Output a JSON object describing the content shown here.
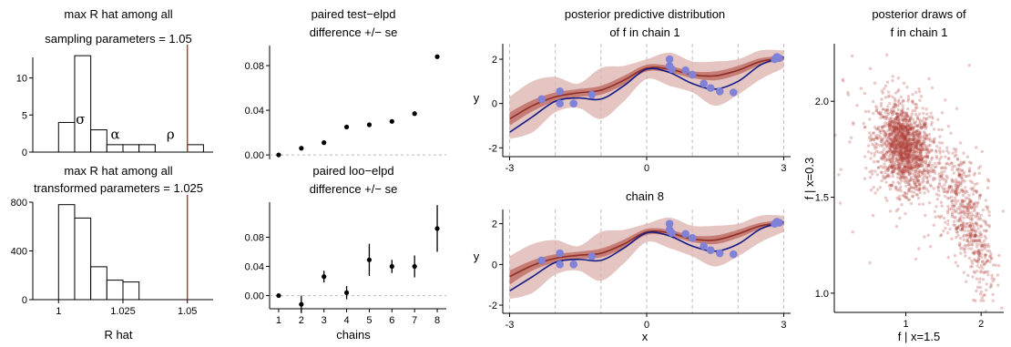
{
  "colors": {
    "rhat_line": "#a0302c",
    "bar_fill": "#ffffff",
    "bar_stroke": "#000000",
    "point": "#000000",
    "band_outer": "#dcb1ae",
    "band_mid": "#c07068",
    "band_inner": "#f2bfa8",
    "median": "#8f2e26",
    "truth": "#141b85",
    "obs": "#7f82d6",
    "draws": "#b0403a",
    "vline": "#bdbdbd"
  },
  "chart_data": [
    {
      "id": "rhat_sampling",
      "type": "bar",
      "title_line1": "max R hat among all",
      "title_line2": "sampling parameters = 1.05",
      "bins_left": [
        1.0,
        1.00625,
        1.0125,
        1.01875,
        1.025,
        1.03125,
        1.0375,
        1.04375,
        1.05,
        1.05625
      ],
      "bin_width": 0.00625,
      "counts": [
        4,
        13,
        3,
        1,
        1,
        1,
        0,
        0,
        1,
        0
      ],
      "ylim": [
        0,
        14
      ],
      "yticks": [
        "0",
        "5",
        "10"
      ],
      "ytick_values": [
        0,
        5,
        10
      ],
      "xlim": [
        0.99,
        1.06
      ],
      "vline": 1.05,
      "annotations": [
        {
          "text": "σ",
          "x": 1.0085,
          "y": 3.8
        },
        {
          "text": "α",
          "x": 1.022,
          "y": 1.8
        },
        {
          "text": "ρ",
          "x": 1.0435,
          "y": 1.8
        }
      ]
    },
    {
      "id": "rhat_transformed",
      "type": "bar",
      "title_line1": "max R hat among all",
      "title_line2": "transformed  parameters = 1.025",
      "bins_left": [
        1.0,
        1.00625,
        1.0125,
        1.01875,
        1.025,
        1.03125,
        1.0375,
        1.04375,
        1.05,
        1.05625
      ],
      "bin_width": 0.00625,
      "counts": [
        780,
        670,
        270,
        160,
        145,
        0,
        0,
        0,
        0,
        0
      ],
      "ylim": [
        0,
        830
      ],
      "yticks": [
        "0",
        "400",
        "800"
      ],
      "ytick_values": [
        0,
        400,
        800
      ],
      "xlim": [
        0.99,
        1.06
      ],
      "xticks": [
        "1",
        "1.025",
        "1.05"
      ],
      "xtick_values": [
        1,
        1.025,
        1.05
      ],
      "xlabel": "R hat",
      "vline": 1.05
    },
    {
      "id": "test_elpd",
      "type": "scatter",
      "title_line1": "paired test−elpd",
      "title_line2": "difference  +/− se",
      "x": [
        1,
        2,
        3,
        4,
        5,
        6,
        7,
        8
      ],
      "y": [
        0.0,
        0.006,
        0.011,
        0.025,
        0.027,
        0.03,
        0.037,
        0.088
      ],
      "se": [
        0.0,
        0.0015,
        0.0015,
        0.0015,
        0.0015,
        0.0015,
        0.0015,
        0.0018
      ],
      "ylim": [
        -0.004,
        0.098
      ],
      "yticks": [
        "0.00",
        "0.04",
        "0.08"
      ],
      "ytick_values": [
        0,
        0.04,
        0.08
      ],
      "hline": 0
    },
    {
      "id": "loo_elpd",
      "type": "scatter",
      "title_line1": "paired loo−elpd",
      "title_line2": "difference  +/− se",
      "x": [
        1,
        2,
        3,
        4,
        5,
        6,
        7,
        8
      ],
      "y": [
        0.0,
        -0.012,
        0.026,
        0.004,
        0.049,
        0.04,
        0.04,
        0.092
      ],
      "se": [
        0.0,
        0.012,
        0.008,
        0.009,
        0.022,
        0.009,
        0.015,
        0.032
      ],
      "ylim": [
        -0.018,
        0.128
      ],
      "yticks": [
        "0.00",
        "0.04",
        "0.08"
      ],
      "ytick_values": [
        0,
        0.04,
        0.08
      ],
      "xticks": [
        "1",
        "2",
        "3",
        "4",
        "5",
        "6",
        "7",
        "8"
      ],
      "xlabel": "chains",
      "hline": 0
    },
    {
      "id": "ppd_chain1",
      "type": "line",
      "title_line1": "posterior predictive distribution",
      "title_line2": "of f in chain 1",
      "ylabel": "y",
      "xlim": [
        -3.15,
        3.15
      ],
      "ylim": [
        -2.4,
        2.7
      ],
      "yticks": [
        "-2",
        "0",
        "2"
      ],
      "ytick_values": [
        -2,
        0,
        2
      ],
      "xticks": [
        "-3",
        "0",
        "3"
      ],
      "xtick_values": [
        -3,
        0,
        3
      ],
      "vlines": [
        -3,
        -2,
        -1,
        0,
        1,
        2,
        3
      ],
      "x": [
        -3.0,
        -2.5,
        -2.0,
        -1.5,
        -1.0,
        -0.5,
        0.0,
        0.5,
        1.0,
        1.5,
        2.0,
        2.5,
        3.0
      ],
      "truth": [
        -1.3,
        -0.6,
        0.1,
        0.25,
        0.2,
        0.8,
        1.55,
        1.4,
        0.9,
        0.65,
        1.0,
        1.75,
        2.1
      ],
      "median": [
        -0.7,
        -0.1,
        0.3,
        0.48,
        0.6,
        1.05,
        1.6,
        1.55,
        1.3,
        1.25,
        1.5,
        1.9,
        2.05
      ],
      "outer_lower": [
        -1.6,
        -1.3,
        -0.4,
        -0.2,
        -0.7,
        0.1,
        1.1,
        0.8,
        0.5,
        -0.1,
        0.4,
        1.1,
        1.6
      ],
      "outer_upper": [
        0.3,
        1.0,
        1.2,
        0.9,
        1.6,
        1.7,
        2.0,
        2.3,
        1.9,
        1.9,
        2.0,
        2.4,
        2.4
      ],
      "mid_lower": [
        -1.0,
        -0.35,
        0.1,
        0.3,
        0.4,
        0.85,
        1.45,
        1.4,
        1.15,
        1.05,
        1.3,
        1.75,
        1.95
      ],
      "mid_upper": [
        -0.4,
        0.15,
        0.5,
        0.65,
        0.8,
        1.25,
        1.75,
        1.7,
        1.45,
        1.45,
        1.7,
        2.05,
        2.15
      ],
      "obs_x": [
        -2.3,
        -1.9,
        -1.9,
        -1.6,
        -1.2,
        0.5,
        0.5,
        0.55,
        0.85,
        1.0,
        1.25,
        1.4,
        1.6,
        1.9,
        2.8,
        2.85,
        2.9
      ],
      "obs_y": [
        0.2,
        0.55,
        0.0,
        0.0,
        0.4,
        2.0,
        1.7,
        1.55,
        1.5,
        1.3,
        0.9,
        0.7,
        0.55,
        0.5,
        2.0,
        2.1,
        2.05
      ]
    },
    {
      "id": "ppd_chain8",
      "type": "line",
      "title_line1": "chain 8",
      "ylabel": "y",
      "xlabel": "x",
      "xlim": [
        -3.15,
        3.15
      ],
      "ylim": [
        -2.4,
        2.7
      ],
      "yticks": [
        "-2",
        "0",
        "2"
      ],
      "ytick_values": [
        -2,
        0,
        2
      ],
      "xticks": [
        "-3",
        "0",
        "3"
      ],
      "xtick_values": [
        -3,
        0,
        3
      ],
      "vlines": [
        -3,
        -2,
        -1,
        0,
        1,
        2,
        3
      ],
      "x": [
        -3.0,
        -2.5,
        -2.0,
        -1.5,
        -1.0,
        -0.5,
        0.0,
        0.5,
        1.0,
        1.5,
        2.0,
        2.5,
        3.0
      ],
      "truth": [
        -1.3,
        -0.6,
        0.1,
        0.25,
        0.2,
        0.8,
        1.55,
        1.4,
        0.9,
        0.65,
        1.0,
        1.75,
        2.1
      ],
      "median": [
        -0.6,
        -0.05,
        0.3,
        0.45,
        0.55,
        1.0,
        1.6,
        1.55,
        1.25,
        1.2,
        1.5,
        1.9,
        2.05
      ],
      "outer_lower": [
        -1.7,
        -1.4,
        -0.5,
        -0.3,
        -0.8,
        0.05,
        1.1,
        0.8,
        0.4,
        -0.1,
        0.4,
        1.1,
        1.6
      ],
      "outer_upper": [
        0.4,
        1.0,
        1.2,
        0.9,
        1.6,
        1.7,
        2.0,
        2.3,
        1.9,
        1.9,
        2.0,
        2.4,
        2.4
      ],
      "mid_lower": [
        -1.0,
        -0.3,
        0.1,
        0.28,
        0.35,
        0.8,
        1.45,
        1.4,
        1.1,
        1.0,
        1.3,
        1.75,
        1.95
      ],
      "mid_upper": [
        -0.3,
        0.2,
        0.5,
        0.62,
        0.78,
        1.22,
        1.75,
        1.7,
        1.42,
        1.42,
        1.7,
        2.05,
        2.15
      ],
      "obs_x": [
        -2.3,
        -1.9,
        -1.9,
        -1.6,
        -1.2,
        0.5,
        0.5,
        0.55,
        0.85,
        1.0,
        1.25,
        1.4,
        1.6,
        1.9,
        2.8,
        2.85,
        2.9
      ],
      "obs_y": [
        0.2,
        0.55,
        0.0,
        0.0,
        0.4,
        2.0,
        1.7,
        1.55,
        1.5,
        1.3,
        0.9,
        0.7,
        0.55,
        0.5,
        2.0,
        2.1,
        2.05
      ]
    },
    {
      "id": "posterior_draws",
      "type": "scatter",
      "title_line1": "posterior draws of",
      "title_line2": "f in chain 1",
      "xlabel": "f | x=1.5",
      "ylabel": "f | x=0.3",
      "xlim": [
        0.05,
        2.3
      ],
      "ylim": [
        0.9,
        2.3
      ],
      "xticks": [
        "1",
        "2"
      ],
      "xtick_values": [
        1,
        2
      ],
      "yticks": [
        "1.0",
        "1.5",
        "2.0"
      ],
      "ytick_values": [
        1.0,
        1.5,
        2.0
      ],
      "clusters": [
        {
          "count": 1400,
          "cx": 0.98,
          "cy": 1.76,
          "sx": 0.18,
          "sy": 0.11,
          "rho": -0.25
        },
        {
          "count": 420,
          "cx": 1.75,
          "cy": 1.45,
          "sx": 0.17,
          "sy": 0.17,
          "rho": -0.55
        },
        {
          "count": 120,
          "cx": 2.0,
          "cy": 1.2,
          "sx": 0.1,
          "sy": 0.15,
          "rho": -0.4
        },
        {
          "count": 200,
          "cx": 1.05,
          "cy": 1.72,
          "sx": 0.5,
          "sy": 0.22,
          "rho": -0.3
        }
      ]
    }
  ]
}
